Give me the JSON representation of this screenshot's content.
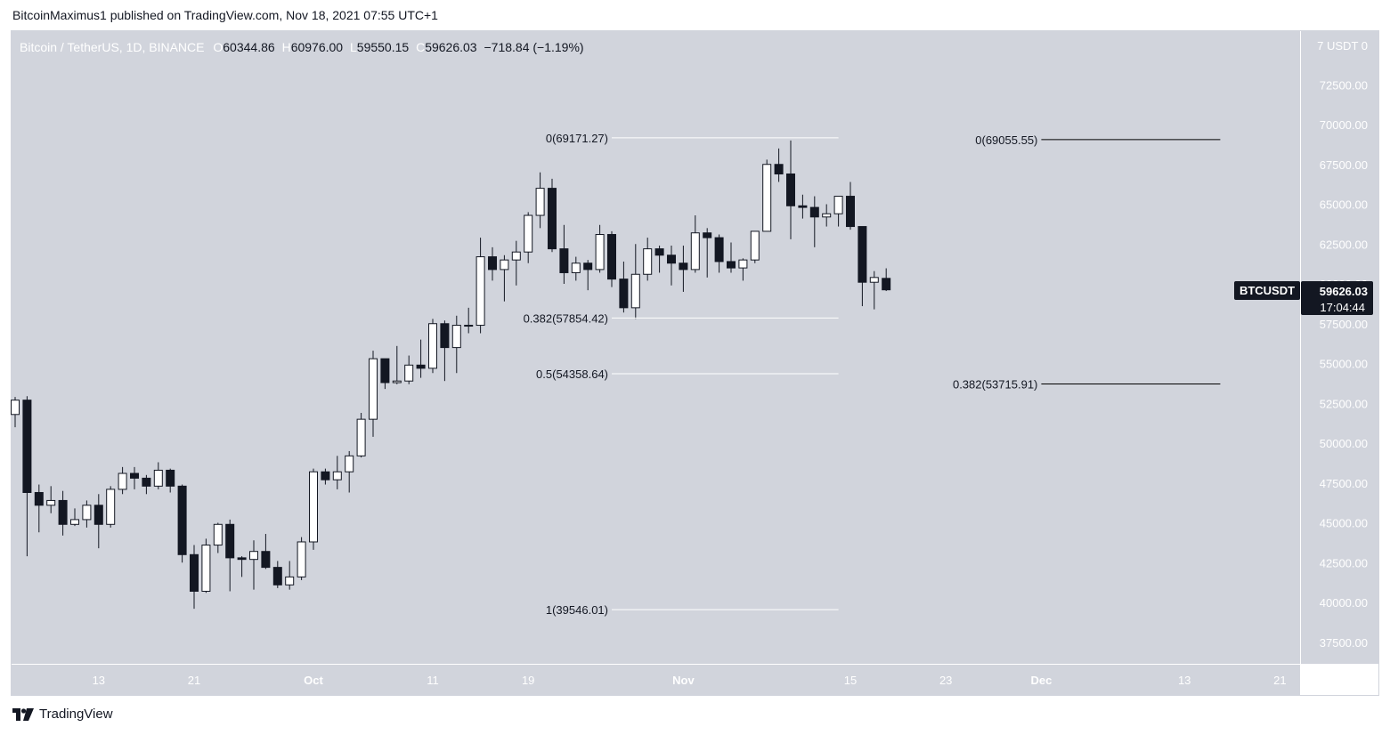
{
  "header": {
    "published_text": "BitcoinMaximus1 published on TradingView.com, Nov 18, 2021 07:55 UTC+1"
  },
  "legend": {
    "symbol": "Bitcoin / TetherUS, 1D, BINANCE",
    "open_label": "O",
    "open": "60344.86",
    "high_label": "H",
    "high": "60976.00",
    "low_label": "L",
    "low": "59550.15",
    "close_label": "C",
    "close": "59626.03",
    "change": "−718.84 (−1.19%)"
  },
  "price_scale": {
    "top_label": "7 USDT 0",
    "ticker_badge": "BTCUSDT",
    "last_price": "59626.03",
    "countdown": "17:04:44"
  },
  "footer": {
    "brand": "TradingView",
    "logo_icon": "tradingview-logo-icon"
  },
  "colors": {
    "background": "#d1d4dc",
    "bull_body": "#ffffff",
    "bear_body": "#131722",
    "wick": "#131722",
    "fib_line": "#ffffff",
    "fib_line_2": "#000000",
    "badge_bg": "#131722",
    "badge_text": "#ffffff",
    "axis_text": "#ffffff"
  },
  "chart_data": {
    "type": "candlestick",
    "title": "Bitcoin / TetherUS, 1D, BINANCE",
    "xlabel": "",
    "ylabel": "",
    "ylim": [
      36000,
      75000
    ],
    "y_ticks": [
      "72500.00",
      "70000.00",
      "67500.00",
      "65000.00",
      "62500.00",
      "60000.00",
      "57500.00",
      "55000.00",
      "52500.00",
      "50000.00",
      "47500.00",
      "45000.00",
      "42500.00",
      "40000.00",
      "37500.00"
    ],
    "x_ticks": [
      {
        "label": "13",
        "date": "2021-09-13"
      },
      {
        "label": "21",
        "date": "2021-09-21"
      },
      {
        "label": "Oct",
        "date": "2021-10-01"
      },
      {
        "label": "11",
        "date": "2021-10-11"
      },
      {
        "label": "19",
        "date": "2021-10-19"
      },
      {
        "label": "Nov",
        "date": "2021-11-01"
      },
      {
        "label": "15",
        "date": "2021-11-15"
      },
      {
        "label": "23",
        "date": "2021-11-23"
      },
      {
        "label": "Dec",
        "date": "2021-12-01"
      },
      {
        "label": "13",
        "date": "2021-12-13"
      },
      {
        "label": "21",
        "date": "2021-12-21"
      }
    ],
    "candles": [
      {
        "date": "2021-09-06",
        "o": 51800,
        "h": 52900,
        "l": 51000,
        "c": 52700
      },
      {
        "date": "2021-09-07",
        "o": 52700,
        "h": 52950,
        "l": 42900,
        "c": 46900
      },
      {
        "date": "2021-09-08",
        "o": 46900,
        "h": 47400,
        "l": 44400,
        "c": 46100
      },
      {
        "date": "2021-09-09",
        "o": 46100,
        "h": 47300,
        "l": 45600,
        "c": 46400
      },
      {
        "date": "2021-09-10",
        "o": 46400,
        "h": 47000,
        "l": 44200,
        "c": 44900
      },
      {
        "date": "2021-09-11",
        "o": 44900,
        "h": 45900,
        "l": 44800,
        "c": 45200
      },
      {
        "date": "2021-09-12",
        "o": 45200,
        "h": 46400,
        "l": 44700,
        "c": 46100
      },
      {
        "date": "2021-09-13",
        "o": 46100,
        "h": 46800,
        "l": 43400,
        "c": 44900
      },
      {
        "date": "2021-09-14",
        "o": 44900,
        "h": 47300,
        "l": 44700,
        "c": 47100
      },
      {
        "date": "2021-09-15",
        "o": 47100,
        "h": 48500,
        "l": 46800,
        "c": 48100
      },
      {
        "date": "2021-09-16",
        "o": 48100,
        "h": 48500,
        "l": 47100,
        "c": 47800
      },
      {
        "date": "2021-09-17",
        "o": 47800,
        "h": 48000,
        "l": 46800,
        "c": 47300
      },
      {
        "date": "2021-09-18",
        "o": 47300,
        "h": 48800,
        "l": 47100,
        "c": 48300
      },
      {
        "date": "2021-09-19",
        "o": 48300,
        "h": 48400,
        "l": 46900,
        "c": 47300
      },
      {
        "date": "2021-09-20",
        "o": 47300,
        "h": 47400,
        "l": 42500,
        "c": 43000
      },
      {
        "date": "2021-09-21",
        "o": 43000,
        "h": 43600,
        "l": 39600,
        "c": 40700
      },
      {
        "date": "2021-09-22",
        "o": 40700,
        "h": 44000,
        "l": 40600,
        "c": 43600
      },
      {
        "date": "2021-09-23",
        "o": 43600,
        "h": 45000,
        "l": 43100,
        "c": 44900
      },
      {
        "date": "2021-09-24",
        "o": 44900,
        "h": 45200,
        "l": 40700,
        "c": 42800
      },
      {
        "date": "2021-09-25",
        "o": 42800,
        "h": 42900,
        "l": 41600,
        "c": 42700
      },
      {
        "date": "2021-09-26",
        "o": 42700,
        "h": 43900,
        "l": 40800,
        "c": 43200
      },
      {
        "date": "2021-09-27",
        "o": 43200,
        "h": 44300,
        "l": 42100,
        "c": 42200
      },
      {
        "date": "2021-09-28",
        "o": 42200,
        "h": 42600,
        "l": 40900,
        "c": 41100
      },
      {
        "date": "2021-09-29",
        "o": 41100,
        "h": 42600,
        "l": 40800,
        "c": 41600
      },
      {
        "date": "2021-09-30",
        "o": 41600,
        "h": 44100,
        "l": 41400,
        "c": 43800
      },
      {
        "date": "2021-10-01",
        "o": 43800,
        "h": 48400,
        "l": 43300,
        "c": 48200
      },
      {
        "date": "2021-10-02",
        "o": 48200,
        "h": 48400,
        "l": 47400,
        "c": 47700
      },
      {
        "date": "2021-10-03",
        "o": 47700,
        "h": 49200,
        "l": 47100,
        "c": 48200
      },
      {
        "date": "2021-10-04",
        "o": 48200,
        "h": 49500,
        "l": 46900,
        "c": 49200
      },
      {
        "date": "2021-10-05",
        "o": 49200,
        "h": 51900,
        "l": 49100,
        "c": 51500
      },
      {
        "date": "2021-10-06",
        "o": 51500,
        "h": 55800,
        "l": 50400,
        "c": 55300
      },
      {
        "date": "2021-10-07",
        "o": 55300,
        "h": 55300,
        "l": 53400,
        "c": 53800
      },
      {
        "date": "2021-10-08",
        "o": 53800,
        "h": 56100,
        "l": 53700,
        "c": 53900
      },
      {
        "date": "2021-10-09",
        "o": 53900,
        "h": 55500,
        "l": 53700,
        "c": 54900
      },
      {
        "date": "2021-10-10",
        "o": 54900,
        "h": 56500,
        "l": 54100,
        "c": 54700
      },
      {
        "date": "2021-10-11",
        "o": 54700,
        "h": 57800,
        "l": 54400,
        "c": 57500
      },
      {
        "date": "2021-10-12",
        "o": 57500,
        "h": 57700,
        "l": 53900,
        "c": 56000
      },
      {
        "date": "2021-10-13",
        "o": 56000,
        "h": 58000,
        "l": 54400,
        "c": 57400
      },
      {
        "date": "2021-10-14",
        "o": 57400,
        "h": 58500,
        "l": 56900,
        "c": 57400
      },
      {
        "date": "2021-10-15",
        "o": 57400,
        "h": 62900,
        "l": 56900,
        "c": 61700
      },
      {
        "date": "2021-10-16",
        "o": 61700,
        "h": 62300,
        "l": 60200,
        "c": 60900
      },
      {
        "date": "2021-10-17",
        "o": 60900,
        "h": 61800,
        "l": 58900,
        "c": 61500
      },
      {
        "date": "2021-10-18",
        "o": 61500,
        "h": 62700,
        "l": 59900,
        "c": 62000
      },
      {
        "date": "2021-10-19",
        "o": 62000,
        "h": 64500,
        "l": 61300,
        "c": 64300
      },
      {
        "date": "2021-10-20",
        "o": 64300,
        "h": 67000,
        "l": 63500,
        "c": 66000
      },
      {
        "date": "2021-10-21",
        "o": 66000,
        "h": 66600,
        "l": 62000,
        "c": 62200
      },
      {
        "date": "2021-10-22",
        "o": 62200,
        "h": 63700,
        "l": 60000,
        "c": 60700
      },
      {
        "date": "2021-10-23",
        "o": 60700,
        "h": 61700,
        "l": 60200,
        "c": 61300
      },
      {
        "date": "2021-10-24",
        "o": 61300,
        "h": 61500,
        "l": 59600,
        "c": 60900
      },
      {
        "date": "2021-10-25",
        "o": 60900,
        "h": 63700,
        "l": 60700,
        "c": 63100
      },
      {
        "date": "2021-10-26",
        "o": 63100,
        "h": 63300,
        "l": 59800,
        "c": 60300
      },
      {
        "date": "2021-10-27",
        "o": 60300,
        "h": 61400,
        "l": 58200,
        "c": 58500
      },
      {
        "date": "2021-10-28",
        "o": 58500,
        "h": 62500,
        "l": 57800,
        "c": 60600
      },
      {
        "date": "2021-10-29",
        "o": 60600,
        "h": 62900,
        "l": 60200,
        "c": 62200
      },
      {
        "date": "2021-10-30",
        "o": 62200,
        "h": 62400,
        "l": 60700,
        "c": 61800
      },
      {
        "date": "2021-10-31",
        "o": 61800,
        "h": 62400,
        "l": 59900,
        "c": 61300
      },
      {
        "date": "2021-11-01",
        "o": 61300,
        "h": 62400,
        "l": 59500,
        "c": 60900
      },
      {
        "date": "2021-11-02",
        "o": 60900,
        "h": 64300,
        "l": 60700,
        "c": 63200
      },
      {
        "date": "2021-11-03",
        "o": 63200,
        "h": 63500,
        "l": 60400,
        "c": 62900
      },
      {
        "date": "2021-11-04",
        "o": 62900,
        "h": 63100,
        "l": 60700,
        "c": 61400
      },
      {
        "date": "2021-11-05",
        "o": 61400,
        "h": 62600,
        "l": 60700,
        "c": 61000
      },
      {
        "date": "2021-11-06",
        "o": 61000,
        "h": 61600,
        "l": 60200,
        "c": 61500
      },
      {
        "date": "2021-11-07",
        "o": 61500,
        "h": 63300,
        "l": 61300,
        "c": 63300
      },
      {
        "date": "2021-11-08",
        "o": 63300,
        "h": 67800,
        "l": 63300,
        "c": 67500
      },
      {
        "date": "2021-11-09",
        "o": 67500,
        "h": 68500,
        "l": 66400,
        "c": 66900
      },
      {
        "date": "2021-11-10",
        "o": 66900,
        "h": 69000,
        "l": 62800,
        "c": 64900
      },
      {
        "date": "2021-11-11",
        "o": 64900,
        "h": 65600,
        "l": 64100,
        "c": 64800
      },
      {
        "date": "2021-11-12",
        "o": 64800,
        "h": 65500,
        "l": 62300,
        "c": 64200
      },
      {
        "date": "2021-11-13",
        "o": 64200,
        "h": 65000,
        "l": 63600,
        "c": 64400
      },
      {
        "date": "2021-11-14",
        "o": 64400,
        "h": 65500,
        "l": 63600,
        "c": 65500
      },
      {
        "date": "2021-11-15",
        "o": 65500,
        "h": 66400,
        "l": 63400,
        "c": 63600
      },
      {
        "date": "2021-11-16",
        "o": 63600,
        "h": 63600,
        "l": 58600,
        "c": 60100
      },
      {
        "date": "2021-11-17",
        "o": 60100,
        "h": 60800,
        "l": 58400,
        "c": 60400
      },
      {
        "date": "2021-11-18",
        "o": 60344.86,
        "h": 60976.0,
        "l": 59550.15,
        "c": 59626.03
      }
    ],
    "fib_levels": [
      {
        "label": "0(69171.27)",
        "value": 69171.27,
        "start": "2021-10-26",
        "end": "2021-11-14",
        "label_pos": "left",
        "color": "#ffffff"
      },
      {
        "label": "0.382(57854.42)",
        "value": 57854.42,
        "start": "2021-10-26",
        "end": "2021-11-14",
        "label_pos": "left",
        "color": "#ffffff"
      },
      {
        "label": "0.5(54358.64)",
        "value": 54358.64,
        "start": "2021-10-26",
        "end": "2021-11-14",
        "label_pos": "left",
        "color": "#ffffff"
      },
      {
        "label": "1(39546.01)",
        "value": 39546.01,
        "start": "2021-10-26",
        "end": "2021-11-14",
        "label_pos": "left",
        "color": "#ffffff"
      },
      {
        "label": "0(69055.55)",
        "value": 69055.55,
        "start": "2021-12-01",
        "end": "2021-12-16",
        "label_pos": "left",
        "color": "#000000"
      },
      {
        "label": "0.382(53715.91)",
        "value": 53715.91,
        "start": "2021-12-01",
        "end": "2021-12-16",
        "label_pos": "left",
        "color": "#000000"
      }
    ],
    "grid": false,
    "legend_position": "top-left"
  }
}
